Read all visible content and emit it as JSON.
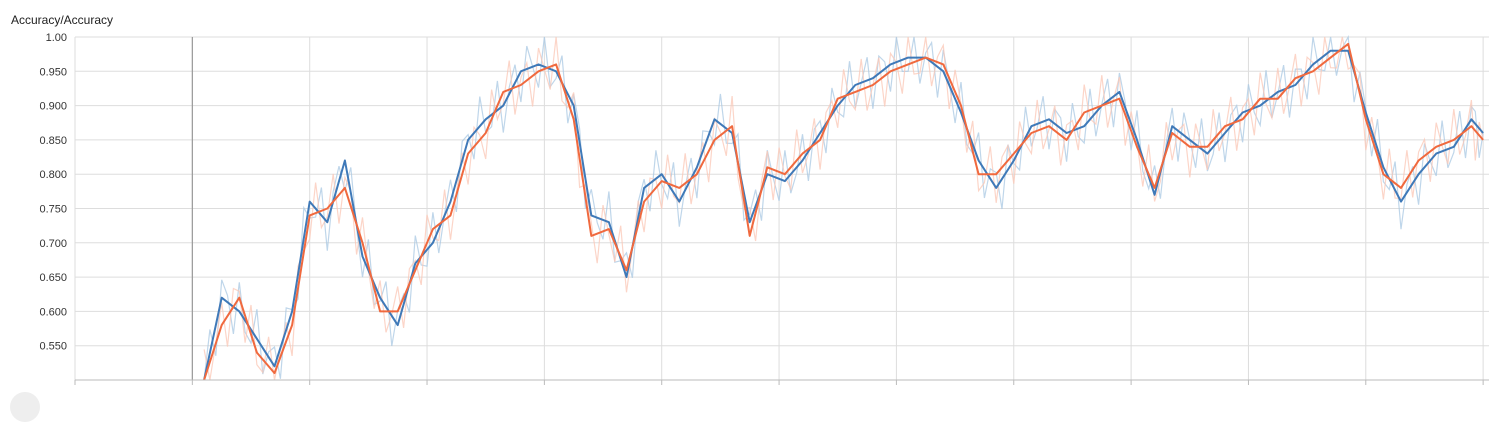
{
  "chart_data": {
    "type": "line",
    "title": "Accuracy/Accuracy",
    "xlabel": "",
    "ylabel": "",
    "ylim": [
      0.5,
      1.0
    ],
    "xlim": [
      0,
      1.205
    ],
    "y_ticks": [
      "1.00",
      "0.950",
      "0.900",
      "0.850",
      "0.800",
      "0.750",
      "0.700",
      "0.650",
      "0.600",
      "0.550"
    ],
    "y_tick_values": [
      1.0,
      0.95,
      0.9,
      0.85,
      0.8,
      0.75,
      0.7,
      0.65,
      0.6,
      0.55
    ],
    "grid": true,
    "series": [
      {
        "color": "#3f79b8",
        "raw_color": "#aac8e3",
        "x": [
          0.11,
          0.125,
          0.14,
          0.155,
          0.17,
          0.185,
          0.2,
          0.215,
          0.23,
          0.245,
          0.26,
          0.275,
          0.29,
          0.305,
          0.32,
          0.335,
          0.35,
          0.365,
          0.38,
          0.395,
          0.41,
          0.425,
          0.44,
          0.455,
          0.47,
          0.485,
          0.5,
          0.515,
          0.53,
          0.545,
          0.56,
          0.575,
          0.59,
          0.605,
          0.62,
          0.635,
          0.65,
          0.665,
          0.68,
          0.695,
          0.71,
          0.725,
          0.74,
          0.755,
          0.77,
          0.785,
          0.8,
          0.815,
          0.83,
          0.845,
          0.86,
          0.875,
          0.89,
          0.905,
          0.92,
          0.935,
          0.95,
          0.965,
          0.98,
          0.995,
          1.01,
          1.025,
          1.04,
          1.055,
          1.07,
          1.085,
          1.1,
          1.115,
          1.13,
          1.145,
          1.16,
          1.175,
          1.19,
          1.2
        ],
        "values": [
          0.5,
          0.62,
          0.6,
          0.56,
          0.52,
          0.6,
          0.76,
          0.73,
          0.82,
          0.68,
          0.62,
          0.58,
          0.67,
          0.7,
          0.76,
          0.85,
          0.88,
          0.9,
          0.95,
          0.96,
          0.95,
          0.9,
          0.74,
          0.73,
          0.65,
          0.78,
          0.8,
          0.76,
          0.81,
          0.88,
          0.86,
          0.73,
          0.8,
          0.79,
          0.82,
          0.86,
          0.9,
          0.93,
          0.94,
          0.96,
          0.97,
          0.97,
          0.95,
          0.89,
          0.82,
          0.78,
          0.82,
          0.87,
          0.88,
          0.86,
          0.87,
          0.9,
          0.92,
          0.85,
          0.77,
          0.87,
          0.85,
          0.83,
          0.86,
          0.89,
          0.9,
          0.92,
          0.93,
          0.96,
          0.98,
          0.98,
          0.89,
          0.81,
          0.76,
          0.8,
          0.83,
          0.84,
          0.88,
          0.86
        ]
      },
      {
        "color": "#f0693e",
        "raw_color": "#fbc7b6",
        "x": [
          0.11,
          0.125,
          0.14,
          0.155,
          0.17,
          0.185,
          0.2,
          0.215,
          0.23,
          0.245,
          0.26,
          0.275,
          0.29,
          0.305,
          0.32,
          0.335,
          0.35,
          0.365,
          0.38,
          0.395,
          0.41,
          0.425,
          0.44,
          0.455,
          0.47,
          0.485,
          0.5,
          0.515,
          0.53,
          0.545,
          0.56,
          0.575,
          0.59,
          0.605,
          0.62,
          0.635,
          0.65,
          0.665,
          0.68,
          0.695,
          0.71,
          0.725,
          0.74,
          0.755,
          0.77,
          0.785,
          0.8,
          0.815,
          0.83,
          0.845,
          0.86,
          0.875,
          0.89,
          0.905,
          0.92,
          0.935,
          0.95,
          0.965,
          0.98,
          0.995,
          1.01,
          1.025,
          1.04,
          1.055,
          1.07,
          1.085,
          1.1,
          1.115,
          1.13,
          1.145,
          1.16,
          1.175,
          1.19,
          1.2
        ],
        "values": [
          0.5,
          0.58,
          0.62,
          0.54,
          0.51,
          0.58,
          0.74,
          0.75,
          0.78,
          0.7,
          0.6,
          0.6,
          0.66,
          0.72,
          0.74,
          0.83,
          0.86,
          0.92,
          0.93,
          0.95,
          0.96,
          0.88,
          0.71,
          0.72,
          0.66,
          0.76,
          0.79,
          0.78,
          0.8,
          0.85,
          0.87,
          0.71,
          0.81,
          0.8,
          0.83,
          0.85,
          0.91,
          0.92,
          0.93,
          0.95,
          0.96,
          0.97,
          0.96,
          0.9,
          0.8,
          0.8,
          0.83,
          0.86,
          0.87,
          0.85,
          0.89,
          0.9,
          0.91,
          0.84,
          0.78,
          0.86,
          0.84,
          0.84,
          0.87,
          0.88,
          0.91,
          0.91,
          0.94,
          0.95,
          0.97,
          0.99,
          0.88,
          0.8,
          0.78,
          0.82,
          0.84,
          0.85,
          0.87,
          0.85
        ]
      }
    ]
  }
}
